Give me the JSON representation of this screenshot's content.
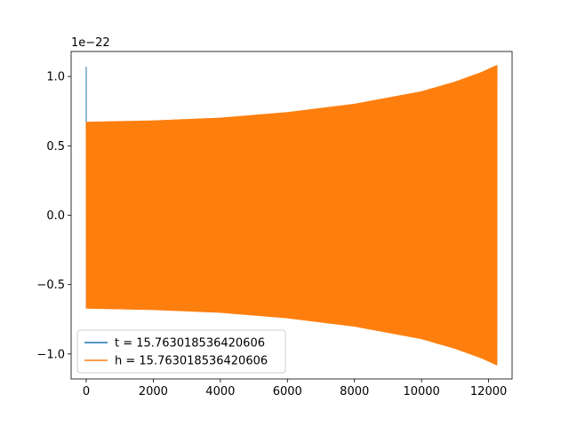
{
  "chart_data": {
    "type": "line",
    "title": "",
    "xlabel": "",
    "ylabel": "",
    "y_offset_text": "1e−22",
    "xlim": [
      -450,
      12700
    ],
    "ylim": [
      -1.18,
      1.18
    ],
    "x_ticks": [
      {
        "value": 0,
        "label": "0"
      },
      {
        "value": 2000,
        "label": "2000"
      },
      {
        "value": 4000,
        "label": "4000"
      },
      {
        "value": 6000,
        "label": "6000"
      },
      {
        "value": 8000,
        "label": "8000"
      },
      {
        "value": 10000,
        "label": "10000"
      },
      {
        "value": 12000,
        "label": "12000"
      }
    ],
    "y_ticks": [
      {
        "value": 1.0,
        "label": "1.0"
      },
      {
        "value": 0.5,
        "label": "0.5"
      },
      {
        "value": 0.0,
        "label": "0.0"
      },
      {
        "value": -0.5,
        "label": "−0.5"
      },
      {
        "value": -1.0,
        "label": "−1.0"
      }
    ],
    "grid": false,
    "legend": {
      "placement": "lower-left",
      "entries": [
        {
          "name": "t = 15.763018536420606",
          "color": "#1f77b4"
        },
        {
          "name": "h = 15.763018536420606",
          "color": "#ff7f0e"
        }
      ]
    },
    "series": [
      {
        "name": "t = 15.763018536420606",
        "color": "#1f77b4",
        "kind": "oscillating",
        "x_range": [
          0,
          12250
        ],
        "envelope_x": [
          0,
          2000,
          4000,
          6000,
          8000,
          10000,
          11000,
          11800,
          12250
        ],
        "envelope_y": [
          0.67,
          0.68,
          0.7,
          0.74,
          0.8,
          0.89,
          0.96,
          1.03,
          1.08
        ],
        "initial_spike": 1.07
      },
      {
        "name": "h = 15.763018536420606",
        "color": "#ff7f0e",
        "kind": "oscillating",
        "x_range": [
          0,
          12250
        ],
        "envelope_x": [
          0,
          2000,
          4000,
          6000,
          8000,
          10000,
          11000,
          11800,
          12250
        ],
        "envelope_y": [
          0.67,
          0.68,
          0.7,
          0.74,
          0.8,
          0.89,
          0.96,
          1.03,
          1.08
        ]
      }
    ]
  }
}
